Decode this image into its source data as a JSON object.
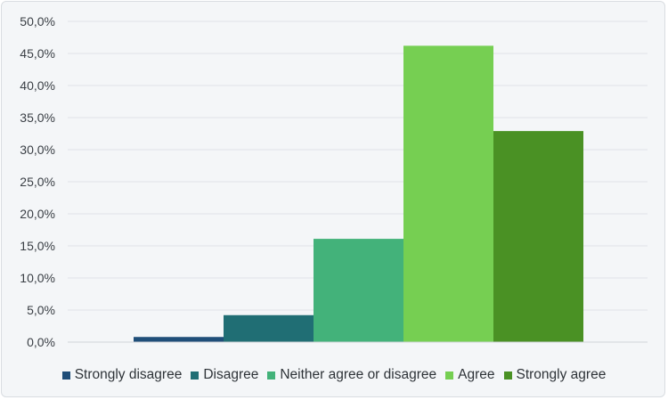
{
  "chart_data": {
    "type": "bar",
    "title": "",
    "xlabel": "",
    "ylabel": "",
    "ylim": [
      0,
      50
    ],
    "y_ticks": [
      "0,0%",
      "5,0%",
      "10,0%",
      "15,0%",
      "20,0%",
      "25,0%",
      "30,0%",
      "35,0%",
      "40,0%",
      "45,0%",
      "50,0%"
    ],
    "grid": true,
    "legend_position": "bottom",
    "series": [
      {
        "name": "Strongly disagree",
        "value": 0.8,
        "color": "#1f4e79"
      },
      {
        "name": "Disagree",
        "value": 4.2,
        "color": "#206e74"
      },
      {
        "name": "Neither agree or disagree",
        "value": 16.1,
        "color": "#43b27a"
      },
      {
        "name": "Agree",
        "value": 46.2,
        "color": "#76cf52"
      },
      {
        "name": "Strongly agree",
        "value": 32.9,
        "color": "#4a9124"
      }
    ]
  }
}
